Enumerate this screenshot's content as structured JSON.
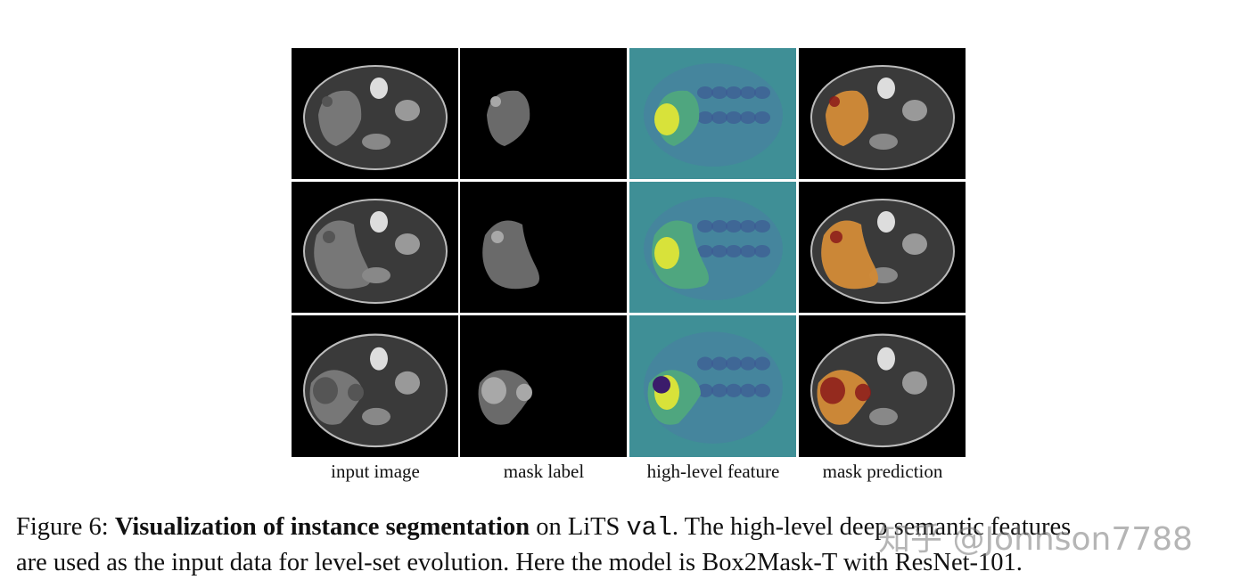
{
  "figure": {
    "column_labels": [
      "input image",
      "mask label",
      "high-level feature",
      "mask prediction"
    ],
    "caption": {
      "line1": [
        {
          "text": "Figure 6: ",
          "style": "normal"
        },
        {
          "text": "Visualization of instance segmentation",
          "style": "bold"
        },
        {
          "text": " on LiTS ",
          "style": "normal"
        },
        {
          "text": "val",
          "style": "mono"
        },
        {
          "text": ". The high-level deep semantic features",
          "style": "normal"
        }
      ],
      "line2": "are used as the input data for level-set evolution. Here the model is Box2Mask-T with ResNet-101."
    },
    "watermark": "知乎 @Johnson7788"
  }
}
